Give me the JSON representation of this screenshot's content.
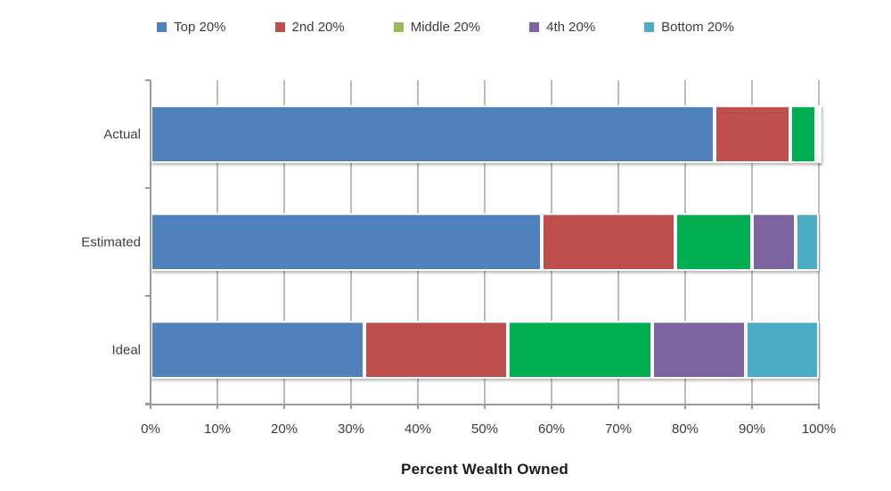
{
  "colors": {
    "axis": "#9b9b9b",
    "grid": "#bcbcbc",
    "label_text": "#3d3d3d",
    "title_text": "#1c1c1c"
  },
  "chart_data": {
    "type": "bar",
    "orientation": "horizontal",
    "stacked": true,
    "title": "",
    "xlabel": "Percent Wealth Owned",
    "ylabel": "",
    "categories": [
      "Actual",
      "Estimated",
      "Ideal"
    ],
    "series": [
      {
        "name": "Top 20%",
        "color": "#4F81BD",
        "legend_color": "#4F81BD",
        "values": [
          84.4,
          58.5,
          32.0
        ]
      },
      {
        "name": "2nd 20%",
        "color": "#BE4F4C",
        "legend_color": "#BE4F4C",
        "values": [
          11.3,
          20.0,
          21.5
        ]
      },
      {
        "name": "Middle 20%",
        "color": "#00AD50",
        "legend_color": "#9BBB59",
        "values": [
          3.9,
          11.5,
          21.5
        ]
      },
      {
        "name": "4th 20%",
        "color": "#7E63A1",
        "legend_color": "#7E63A1",
        "values": [
          0.2,
          6.5,
          14.0
        ]
      },
      {
        "name": "Bottom 20%",
        "color": "#4BACC6",
        "legend_color": "#4BACC6",
        "values": [
          0.2,
          3.5,
          11.0
        ]
      }
    ],
    "x_ticks": [
      "0%",
      "10%",
      "20%",
      "30%",
      "40%",
      "50%",
      "60%",
      "70%",
      "80%",
      "90%",
      "100%"
    ],
    "xlim": [
      0,
      100
    ],
    "grid": true,
    "legend_position": "top"
  }
}
